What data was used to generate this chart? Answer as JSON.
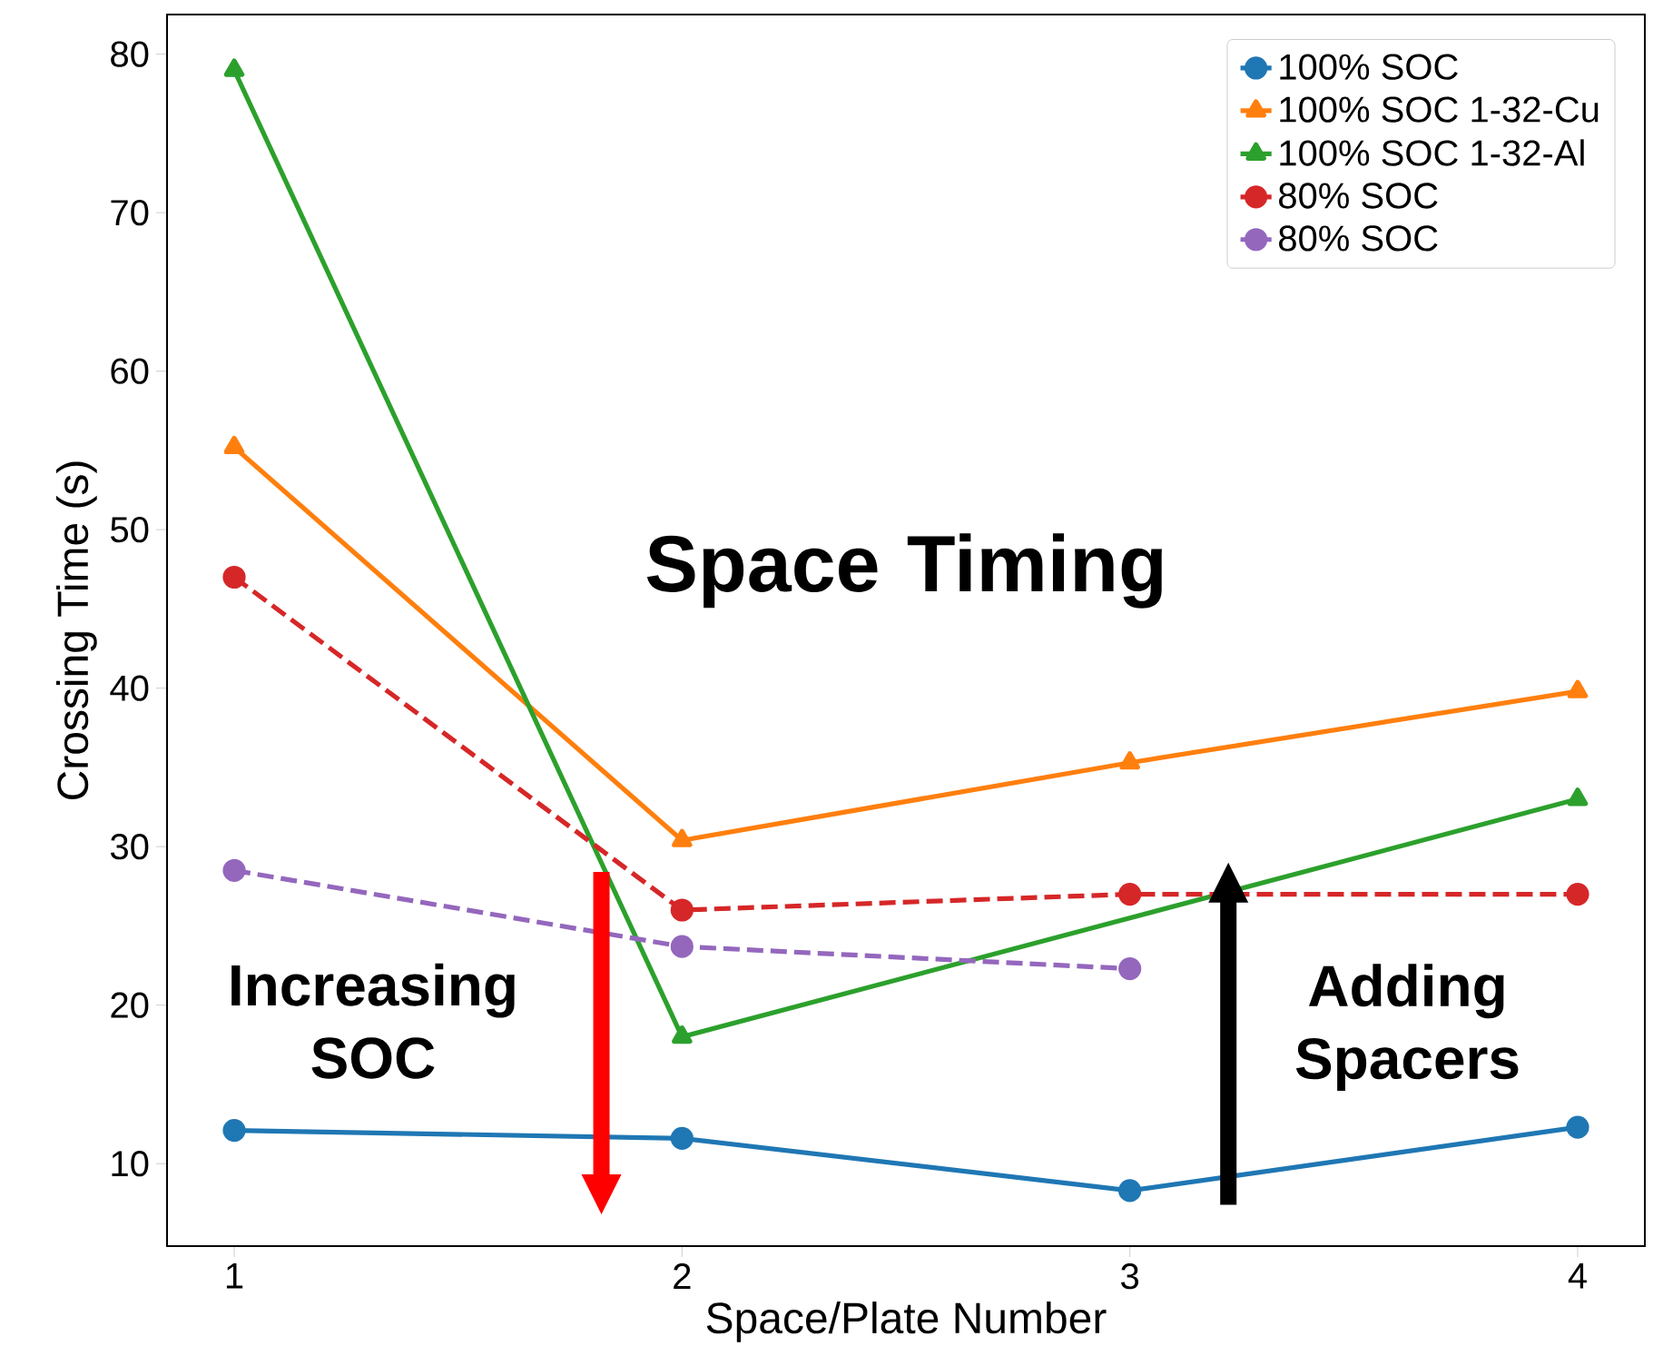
{
  "chart_data": {
    "type": "line",
    "xlabel": "Space/Plate Number",
    "ylabel": "Crossing Time (s)",
    "x": [
      1,
      2,
      3,
      4
    ],
    "xlim": [
      0.85,
      4.15
    ],
    "ylim": [
      4.8,
      82.5
    ],
    "xticks": [
      1,
      2,
      3,
      4
    ],
    "yticks": [
      10,
      20,
      30,
      40,
      50,
      60,
      70,
      80
    ],
    "grid": false,
    "legend": "top right",
    "series": [
      {
        "name": "100% SOC",
        "color": "#1f77b4",
        "marker": "circle",
        "line_style": "solid",
        "values": [
          12.1,
          11.6,
          8.3,
          12.3
        ]
      },
      {
        "name": "100% SOC 1-32-Cu",
        "color": "#ff7f0e",
        "marker": "triangle",
        "line_style": "solid",
        "values": [
          55.2,
          30.4,
          35.3,
          39.8
        ]
      },
      {
        "name": "100% SOC 1-32-Al",
        "color": "#2ca02c",
        "marker": "triangle",
        "line_style": "solid",
        "x": [
          1,
          2,
          4
        ],
        "values": [
          79,
          18,
          33
        ]
      },
      {
        "name": "80% SOC",
        "color": "#d62728",
        "marker": "circle",
        "line_style": "dashed",
        "values": [
          47,
          26,
          27,
          27
        ]
      },
      {
        "name": "80% SOC",
        "color": "#9467bd",
        "marker": "circle",
        "line_style": "dashed",
        "x": [
          1,
          2,
          3
        ],
        "values": [
          28.5,
          23.7,
          22.3
        ]
      }
    ],
    "annotations": [
      "Space Timing",
      "Increasing SOC",
      "Adding Spacers"
    ]
  }
}
